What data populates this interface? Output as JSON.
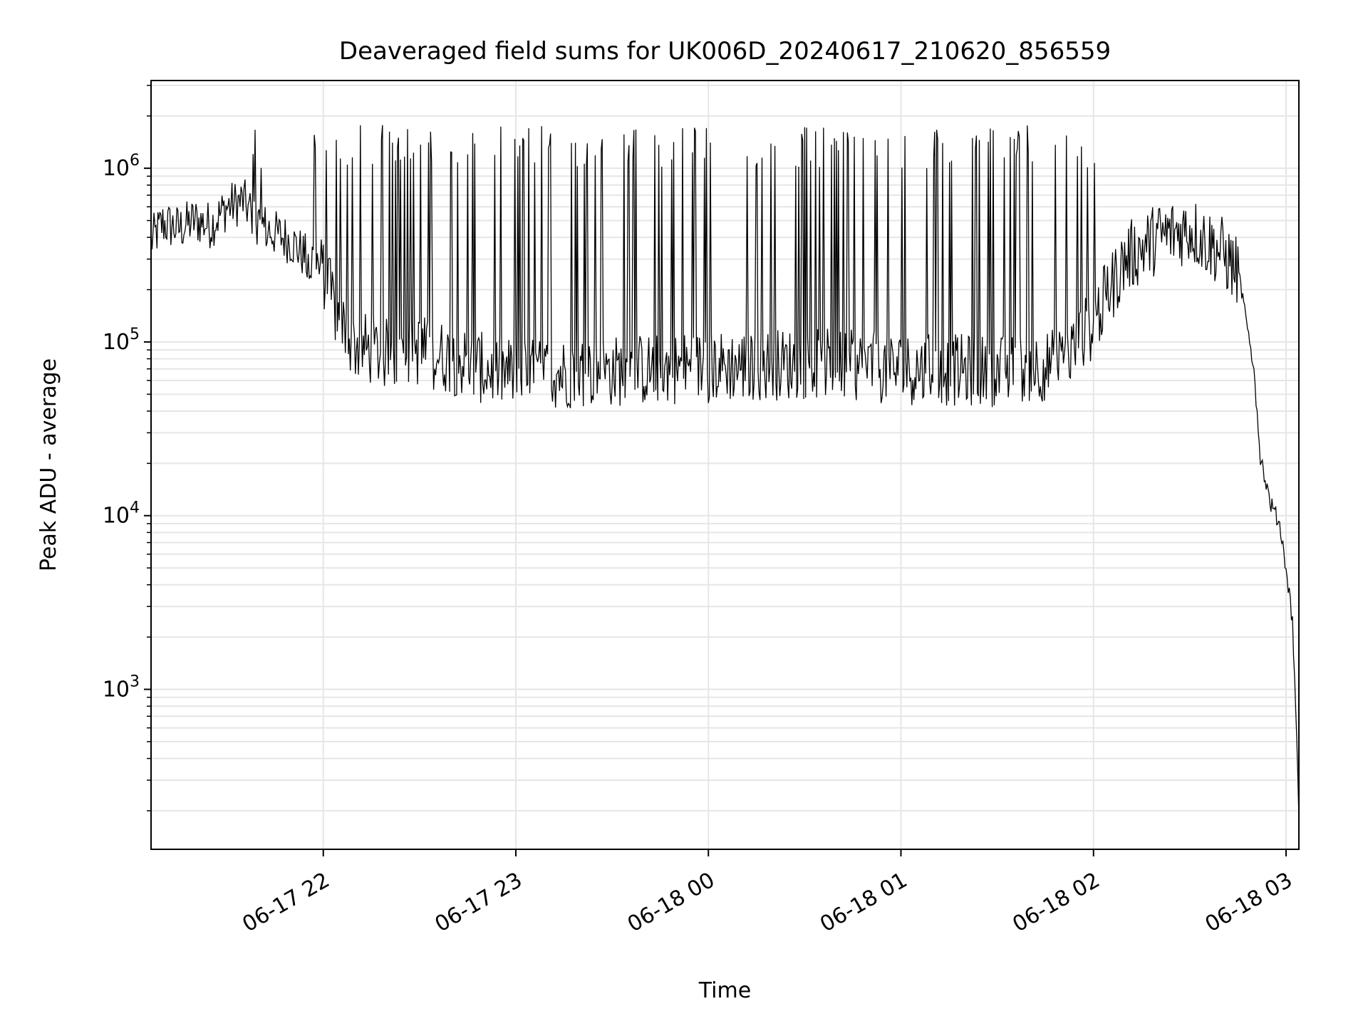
{
  "chart_data": {
    "type": "line",
    "title": "Deaveraged field sums for UK006D_20240617_210620_856559",
    "xlabel": "Time",
    "ylabel": "Peak ADU - average",
    "xscale": "time",
    "yscale": "log",
    "xlim": [
      "2024-06-17 21:06:20",
      "2024-06-18 03:04:00"
    ],
    "ylim": [
      120,
      3200000
    ],
    "x_ticks": [
      "06-17 22",
      "06-17 23",
      "06-18 00",
      "06-18 01",
      "06-18 02",
      "06-18 03"
    ],
    "y_ticks": [
      {
        "base": "10",
        "exp": "3",
        "value": 1000
      },
      {
        "base": "10",
        "exp": "4",
        "value": 10000
      },
      {
        "base": "10",
        "exp": "5",
        "value": 100000
      },
      {
        "base": "10",
        "exp": "6",
        "value": 1000000
      }
    ],
    "grid": true,
    "line_color": "#000000",
    "series": [
      {
        "x": [
          "2024-06-17 21:06:20",
          "2024-06-17 21:10",
          "2024-06-17 21:15",
          "2024-06-17 21:20",
          "2024-06-17 21:25",
          "2024-06-17 21:30",
          "2024-06-17 21:35",
          "2024-06-17 21:40",
          "2024-06-17 21:45",
          "2024-06-17 21:50",
          "2024-06-17 21:55",
          "2024-06-17 22:00",
          "2024-06-17 22:05",
          "2024-06-17 22:10",
          "2024-06-17 22:20",
          "2024-06-17 22:30",
          "2024-06-17 22:40",
          "2024-06-17 22:50",
          "2024-06-17 23:00",
          "2024-06-17 23:30",
          "2024-06-18 00:00",
          "2024-06-18 00:30",
          "2024-06-18 01:00",
          "2024-06-18 01:30",
          "2024-06-18 01:50",
          "2024-06-18 02:00",
          "2024-06-18 02:10",
          "2024-06-18 02:20",
          "2024-06-18 02:30",
          "2024-06-18 02:35",
          "2024-06-18 02:40",
          "2024-06-18 02:45",
          "2024-06-18 02:48",
          "2024-06-18 02:50",
          "2024-06-18 02:52",
          "2024-06-18 02:55",
          "2024-06-18 02:58",
          "2024-06-18 03:00",
          "2024-06-18 03:02",
          "2024-06-18 03:03",
          "2024-06-18 03:04"
        ],
        "values": [
          380000,
          480000,
          450000,
          500000,
          470000,
          600000,
          650000,
          480000,
          420000,
          380000,
          300000,
          250000,
          130000,
          95000,
          85000,
          90000,
          80000,
          70000,
          65000,
          68000,
          72000,
          75000,
          70000,
          68000,
          75000,
          130000,
          300000,
          400000,
          450000,
          380000,
          330000,
          250000,
          130000,
          70000,
          22000,
          12000,
          9000,
          5000,
          2500,
          800,
          180
        ]
      }
    ]
  }
}
